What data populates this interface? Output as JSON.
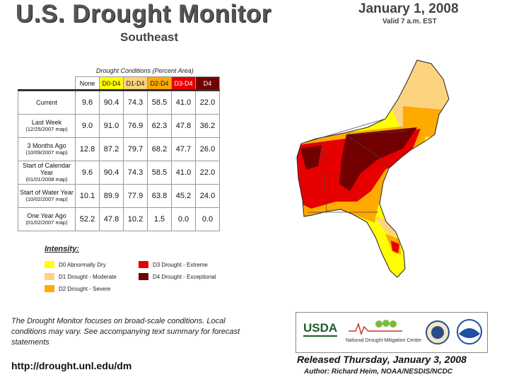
{
  "header": {
    "title": "U.S. Drought Monitor",
    "region": "Southeast",
    "date": "January 1, 2008",
    "valid": "Valid 7 a.m. EST"
  },
  "table": {
    "caption": "Drought Conditions (Percent Area)",
    "columns": [
      "None",
      "D0-D4",
      "D1-D4",
      "D2-D4",
      "D3-D4",
      "D4"
    ],
    "rows": [
      {
        "label": "Current",
        "sub": "",
        "values": [
          "9.6",
          "90.4",
          "74.3",
          "58.5",
          "41.0",
          "22.0"
        ]
      },
      {
        "label": "Last Week",
        "sub": "(12/25/2007 map)",
        "values": [
          "9.0",
          "91.0",
          "76.9",
          "62.3",
          "47.8",
          "36.2"
        ]
      },
      {
        "label": "3 Months Ago",
        "sub": "(10/09/2007 map)",
        "values": [
          "12.8",
          "87.2",
          "79.7",
          "68.2",
          "47.7",
          "26.0"
        ]
      },
      {
        "label": "Start of Calendar Year",
        "sub": "(01/01/2008 map)",
        "values": [
          "9.6",
          "90.4",
          "74.3",
          "58.5",
          "41.0",
          "22.0"
        ]
      },
      {
        "label": "Start of Water Year",
        "sub": "(10/02/2007 map)",
        "values": [
          "10.1",
          "89.9",
          "77.9",
          "63.8",
          "45.2",
          "24.0"
        ]
      },
      {
        "label": "One Year Ago",
        "sub": "(01/02/2007 map)",
        "values": [
          "52.2",
          "47.8",
          "10.2",
          "1.5",
          "0.0",
          "0.0"
        ]
      }
    ]
  },
  "legend": {
    "title": "Intensity:",
    "items": [
      {
        "label": "D0 Abnormally Dry",
        "color": "#ffff00"
      },
      {
        "label": "D1 Drought - Moderate",
        "color": "#fcd37f"
      },
      {
        "label": "D2 Drought - Severe",
        "color": "#ffaa00"
      },
      {
        "label": "D3 Drought - Extreme",
        "color": "#e60000"
      },
      {
        "label": "D4 Drought - Exceptional",
        "color": "#730000"
      }
    ]
  },
  "footer": {
    "note": "The Drought Monitor focuses on broad-scale conditions. Local conditions may vary. See accompanying text summary for forecast statements",
    "url": "http://drought.unl.edu/dm",
    "released": "Released Thursday, January 3, 2008",
    "author": "Author: Richard Heim, NOAA/NESDIS/NCDC",
    "logos": {
      "usda": "USDA",
      "ndmc": "National Drought Mitigation Center"
    }
  }
}
